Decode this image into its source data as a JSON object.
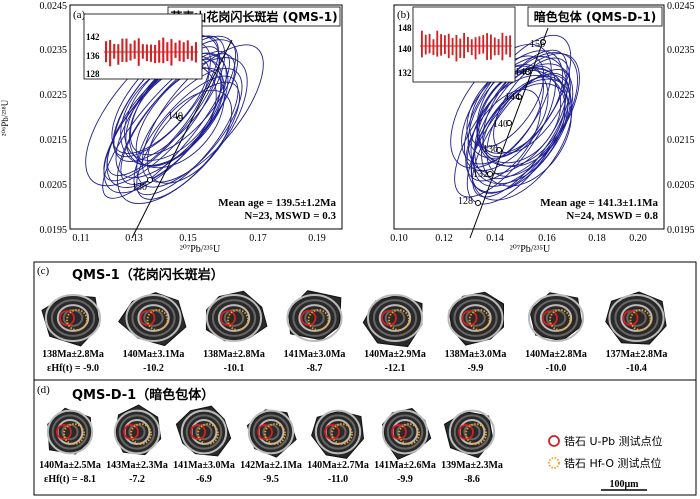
{
  "panel_a": {
    "label": "(a)",
    "title": "荞麦山花岗闪长斑岩 (QMS-1)",
    "ylabel_main": "²⁰⁶Pb/²³⁸U",
    "xlabel": "²⁰⁷Pb/²³⁵U",
    "yticks": [
      "0.0245",
      "0.0235",
      "0.0225",
      "0.0215",
      "0.0205",
      "0.0195"
    ],
    "xticks": [
      "0.11",
      "0.13",
      "0.15",
      "0.17",
      "0.19"
    ],
    "concordia_labels": [
      "140",
      "130"
    ],
    "inset_yticks": [
      "142",
      "136",
      "128"
    ],
    "stats": {
      "line1": "Mean age = 139.5±1.2Ma",
      "line2": "N=23, MSWD = 0.3"
    }
  },
  "panel_b": {
    "label": "(b)",
    "title": "暗色包体 (QMS-D-1)",
    "xlabel": "²⁰⁷Pb/²³⁵U",
    "yticks": [
      "0.0245",
      "0.0235",
      "0.0225",
      "0.0215",
      "0.0205",
      "0.0195"
    ],
    "xticks": [
      "0.10",
      "0.12",
      "0.14",
      "0.16",
      "0.18",
      "0.20"
    ],
    "concordia_labels": [
      "156",
      "148",
      "144",
      "140",
      "136",
      "132",
      "128"
    ],
    "inset_yticks": [
      "148",
      "140",
      "132"
    ],
    "stats": {
      "line1": "Mean age = 141.3±1.1Ma",
      "line2": "N=24, MSWD = 0.8"
    }
  },
  "panel_c": {
    "label": "(c)",
    "title": "QMS-1（花岗闪长斑岩）",
    "grains": [
      {
        "age": "138Ma±2.8Ma",
        "ehf_prefix": "εHf(t) = ",
        "ehf": "-9.0"
      },
      {
        "age": "140Ma±3.1Ma",
        "ehf": "-10.2"
      },
      {
        "age": "138Ma±2.8Ma",
        "ehf": "-10.1"
      },
      {
        "age": "141Ma±3.0Ma",
        "ehf": "-8.7"
      },
      {
        "age": "140Ma±2.9Ma",
        "ehf": "-12.1"
      },
      {
        "age": "138Ma±3.0Ma",
        "ehf": "-9.9"
      },
      {
        "age": "140Ma±2.8Ma",
        "ehf": "-10.0"
      },
      {
        "age": "137Ma±2.8Ma",
        "ehf": "-10.4"
      }
    ]
  },
  "panel_d": {
    "label": "(d)",
    "title": "QMS-D-1（暗色包体）",
    "grains": [
      {
        "age": "140Ma±2.5Ma",
        "ehf_prefix": "εHf(t) = ",
        "ehf": "-8.1"
      },
      {
        "age": "143Ma±2.3Ma",
        "ehf": "-7.2"
      },
      {
        "age": "141Ma±3.0Ma",
        "ehf": "-6.9"
      },
      {
        "age": "142Ma±2.1Ma",
        "ehf": "-9.5"
      },
      {
        "age": "140Ma±2.7Ma",
        "ehf": "-11.0"
      },
      {
        "age": "141Ma±2.6Ma",
        "ehf": "-9.9"
      },
      {
        "age": "139Ma±2.3Ma",
        "ehf": "-8.6"
      }
    ],
    "legend": {
      "upb": "锆石 U-Pb 测试点位",
      "hfo": "锆石 Hf-O 测试点位"
    },
    "scale_bar": "100μm"
  },
  "colors": {
    "ellipse": "#1f1f8f",
    "bar": "#d42020",
    "upb": "#d42020",
    "hfo": "#f0a020"
  }
}
